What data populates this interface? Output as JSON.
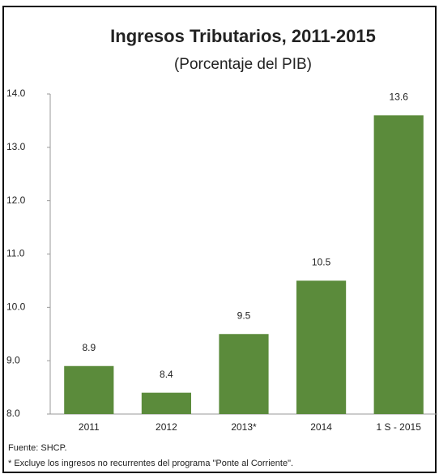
{
  "chart_data": {
    "type": "bar",
    "title": "Ingresos Tributarios, 2011-2015",
    "subtitle": "(Porcentaje del PIB)",
    "categories": [
      "2011",
      "2012",
      "2013*",
      "2014",
      "1 S - 2015"
    ],
    "values": [
      8.9,
      8.4,
      9.5,
      10.5,
      13.6
    ],
    "color": "#5b8b3b",
    "ylim": [
      8,
      14
    ],
    "yticks": [
      {
        "value": 8,
        "label": "8.0"
      },
      {
        "value": 9,
        "label": "9.0"
      },
      {
        "value": 10,
        "label": "10.0"
      },
      {
        "value": 11,
        "label": "11.0"
      },
      {
        "value": 12,
        "label": "12.0"
      },
      {
        "value": 13,
        "label": "13.0"
      },
      {
        "value": 14,
        "label": "14.0"
      }
    ],
    "notes": [
      "Fuente: SHCP.",
      "* Excluye los ingresos no recurrentes del programa \"Ponte al Corriente\"."
    ]
  }
}
